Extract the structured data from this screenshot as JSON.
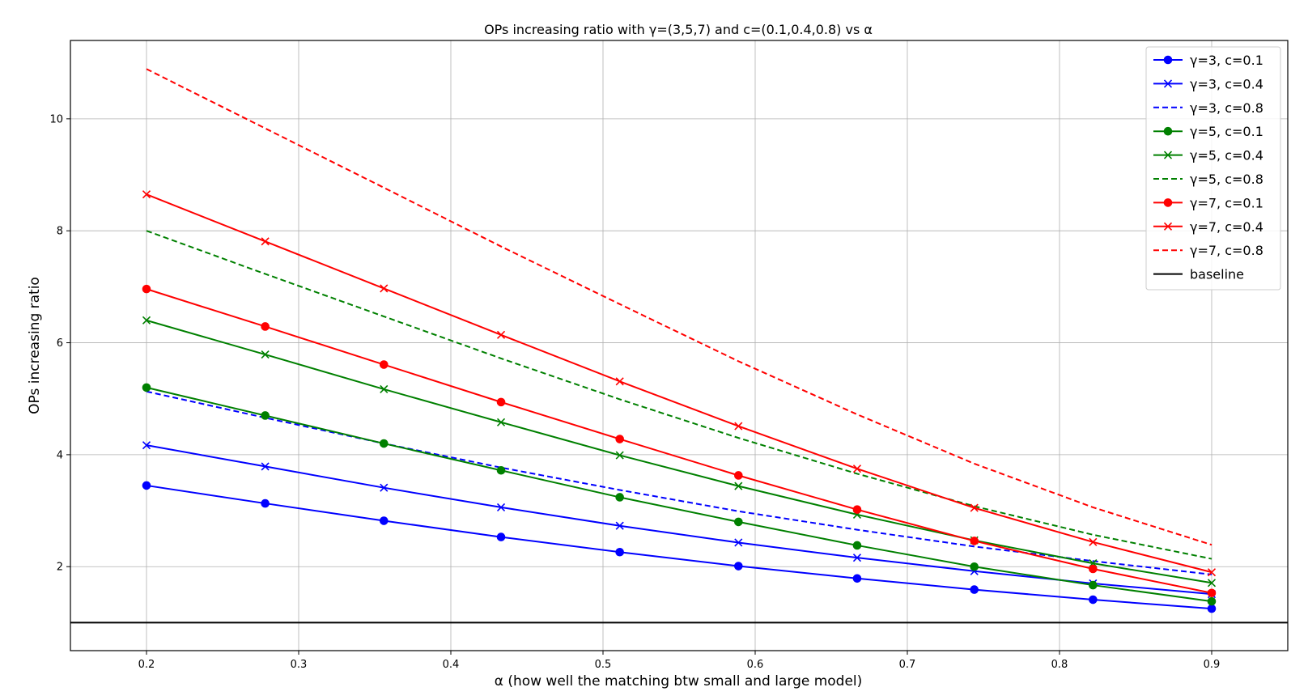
{
  "chart_data": {
    "type": "line",
    "title": "OPs increasing ratio with γ=(3,5,7) and c=(0.1,0.4,0.8) vs α",
    "xlabel": "α (how well the matching btw small and large model)",
    "ylabel": "OPs increasing ratio",
    "xlim": [
      0.15,
      0.95
    ],
    "ylim": [
      0.5,
      11.4
    ],
    "grid": true,
    "legend_position": "top-right",
    "x_ticks": [
      "0.2",
      "0.3",
      "0.4",
      "0.5",
      "0.6",
      "0.7",
      "0.8",
      "0.9"
    ],
    "y_ticks": [
      "2",
      "4",
      "6",
      "8",
      "10"
    ],
    "x": [
      0.2,
      0.278,
      0.356,
      0.433,
      0.511,
      0.589,
      0.667,
      0.744,
      0.822,
      0.9
    ],
    "series": [
      {
        "name": "γ=3, c=0.1",
        "color": "#0000ff",
        "style": "solid",
        "marker": "o",
        "values": [
          3.45,
          3.13,
          2.82,
          2.53,
          2.26,
          2.01,
          1.79,
          1.59,
          1.41,
          1.25
        ]
      },
      {
        "name": "γ=3, c=0.4",
        "color": "#0000ff",
        "style": "solid",
        "marker": "x",
        "values": [
          4.17,
          3.79,
          3.41,
          3.06,
          2.73,
          2.43,
          2.16,
          1.92,
          1.7,
          1.51
        ]
      },
      {
        "name": "γ=3, c=0.8",
        "color": "#0000ff",
        "style": "dashed",
        "marker": "",
        "values": [
          5.13,
          4.66,
          4.2,
          3.77,
          3.37,
          2.99,
          2.66,
          2.36,
          2.1,
          1.86
        ]
      },
      {
        "name": "γ=5, c=0.1",
        "color": "#008000",
        "style": "solid",
        "marker": "o",
        "values": [
          5.2,
          4.7,
          4.2,
          3.72,
          3.24,
          2.8,
          2.38,
          2.0,
          1.67,
          1.38
        ]
      },
      {
        "name": "γ=5, c=0.4",
        "color": "#008000",
        "style": "solid",
        "marker": "x",
        "values": [
          6.4,
          5.79,
          5.17,
          4.58,
          3.99,
          3.44,
          2.93,
          2.47,
          2.06,
          1.71
        ]
      },
      {
        "name": "γ=5, c=0.8",
        "color": "#008000",
        "style": "dashed",
        "marker": "",
        "values": [
          8.0,
          7.23,
          6.47,
          5.72,
          4.99,
          4.3,
          3.66,
          3.08,
          2.57,
          2.14
        ]
      },
      {
        "name": "γ=7, c=0.1",
        "color": "#ff0000",
        "style": "solid",
        "marker": "o",
        "values": [
          6.96,
          6.29,
          5.61,
          4.94,
          4.28,
          3.63,
          3.02,
          2.46,
          1.96,
          1.53
        ]
      },
      {
        "name": "γ=7, c=0.4",
        "color": "#ff0000",
        "style": "solid",
        "marker": "x",
        "values": [
          8.65,
          7.81,
          6.97,
          6.14,
          5.31,
          4.51,
          3.75,
          3.05,
          2.44,
          1.9
        ]
      },
      {
        "name": "γ=7, c=0.8",
        "color": "#ff0000",
        "style": "dashed",
        "marker": "",
        "values": [
          10.89,
          9.83,
          8.77,
          7.72,
          6.69,
          5.67,
          4.72,
          3.84,
          3.06,
          2.39
        ]
      },
      {
        "name": "baseline",
        "color": "#000000",
        "style": "solid",
        "marker": "",
        "horizontal": true,
        "values": [
          1.0,
          1.0,
          1.0,
          1.0,
          1.0,
          1.0,
          1.0,
          1.0,
          1.0,
          1.0
        ]
      }
    ]
  }
}
